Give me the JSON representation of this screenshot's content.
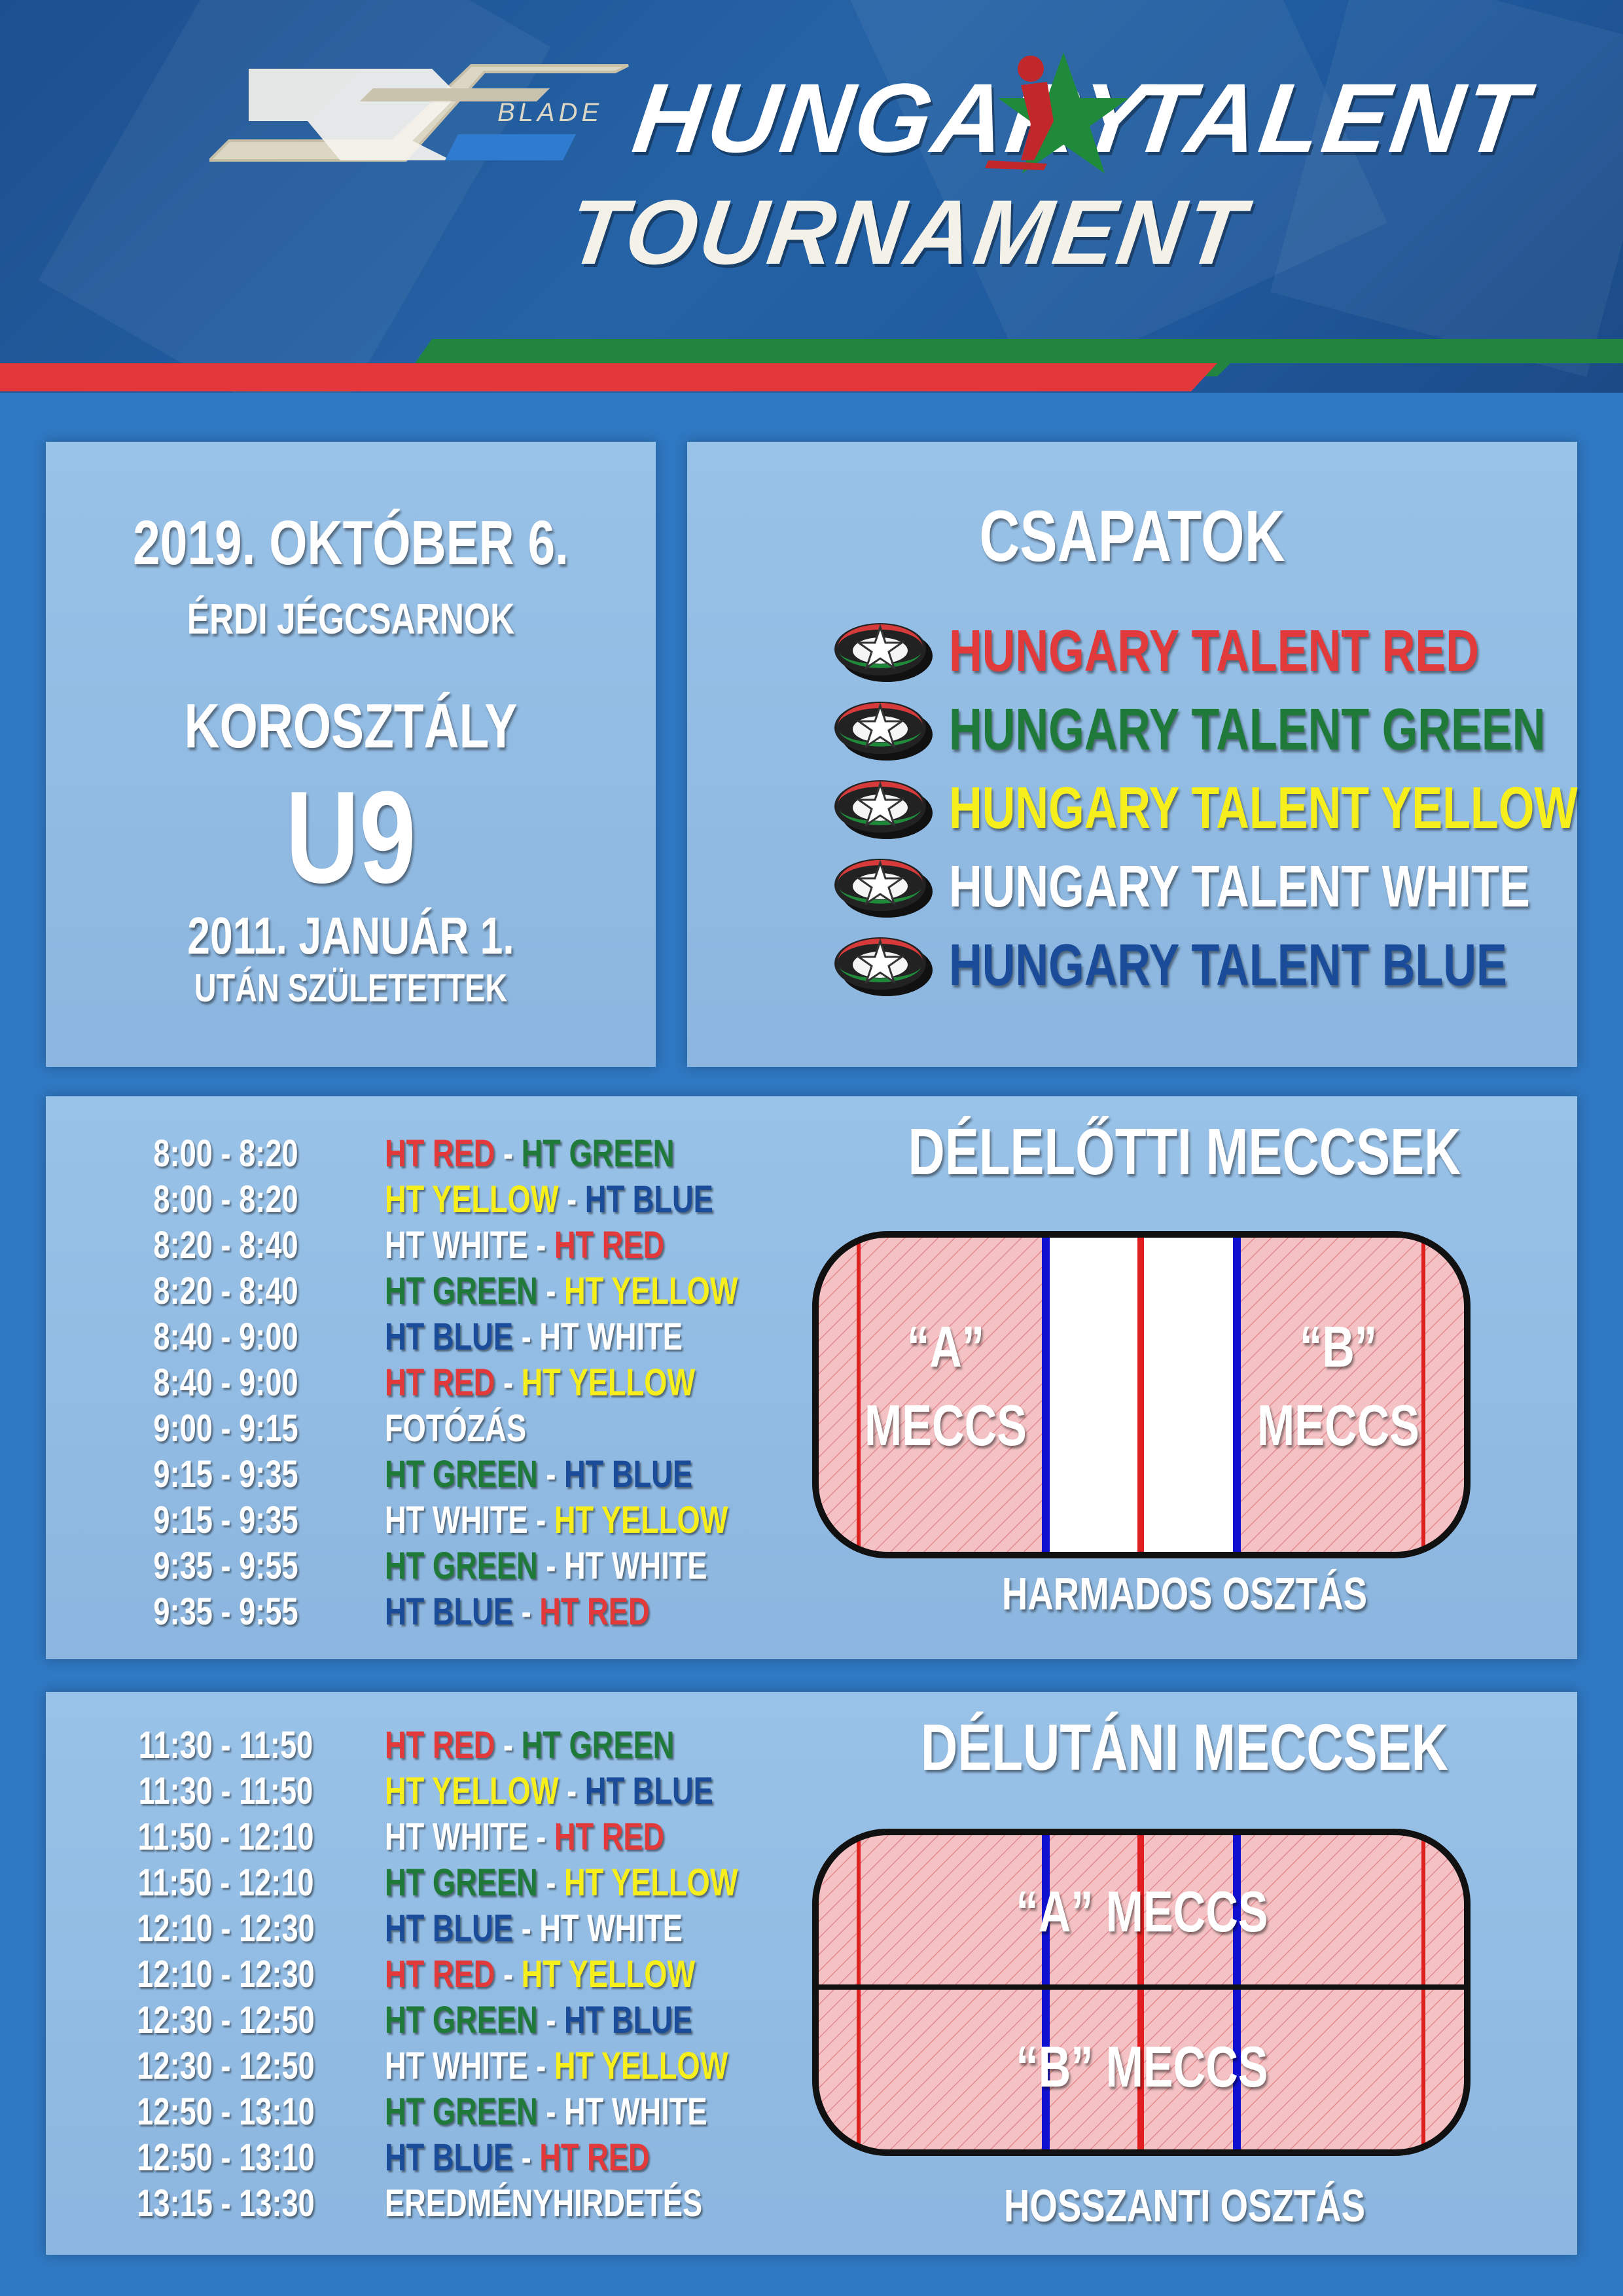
{
  "header": {
    "brand": "BLADE",
    "word1": "HUNGARY",
    "word2": "TALENT",
    "word3": "TOURNAMENT"
  },
  "info": {
    "date": "2019. OKTÓBER 6.",
    "venue": "ÉRDI JÉGCSARNOK",
    "age_label": "KOROSZTÁLY",
    "age_group": "U9",
    "born_date": "2011. JANUÁR 1.",
    "born_note": "UTÁN SZÜLETETTEK"
  },
  "teams": {
    "title": "CSAPATOK",
    "items": [
      {
        "name": "HUNGARY TALENT RED",
        "color": "#e23a3a"
      },
      {
        "name": "HUNGARY TALENT GREEN",
        "color": "#1f7a3a"
      },
      {
        "name": "HUNGARY TALENT YELLOW",
        "color": "#f6ef1c"
      },
      {
        "name": "HUNGARY TALENT WHITE",
        "color": "#ffffff"
      },
      {
        "name": "HUNGARY TALENT BLUE",
        "color": "#1a4c9a"
      }
    ]
  },
  "colors": {
    "red": "#e23a3a",
    "green": "#1f7a3a",
    "yellow": "#f6ef1c",
    "white": "#ffffff",
    "blue": "#1a4c9a"
  },
  "morning": {
    "title": "DÉLELŐTTI MECCSEK",
    "rink_a": [
      "“A”",
      "MECCS"
    ],
    "rink_b": [
      "“B”",
      "MECCS"
    ],
    "caption": "HARMADOS OSZTÁS",
    "rows": [
      {
        "time": "8:00 - 8:20",
        "parts": [
          [
            "HT RED",
            "red"
          ],
          [
            " - ",
            "white"
          ],
          [
            "HT GREEN",
            "green"
          ]
        ]
      },
      {
        "time": "8:00 - 8:20",
        "parts": [
          [
            "HT YELLOW",
            "yellow"
          ],
          [
            " - ",
            "white"
          ],
          [
            "HT BLUE",
            "blue"
          ]
        ]
      },
      {
        "time": "8:20 - 8:40",
        "parts": [
          [
            "HT WHITE",
            "white"
          ],
          [
            " - ",
            "white"
          ],
          [
            "HT RED",
            "red"
          ]
        ]
      },
      {
        "time": "8:20 - 8:40",
        "parts": [
          [
            "HT GREEN",
            "green"
          ],
          [
            " - ",
            "white"
          ],
          [
            "HT YELLOW",
            "yellow"
          ]
        ]
      },
      {
        "time": "8:40 - 9:00",
        "parts": [
          [
            "HT BLUE",
            "blue"
          ],
          [
            " - ",
            "white"
          ],
          [
            "HT WHITE",
            "white"
          ]
        ]
      },
      {
        "time": "8:40 - 9:00",
        "parts": [
          [
            "HT RED",
            "red"
          ],
          [
            " - ",
            "white"
          ],
          [
            "HT YELLOW",
            "yellow"
          ]
        ]
      },
      {
        "time": "9:00 - 9:15",
        "parts": [
          [
            "FOTÓZÁS",
            "white"
          ]
        ]
      },
      {
        "time": "9:15 - 9:35",
        "parts": [
          [
            "HT GREEN",
            "green"
          ],
          [
            " - ",
            "white"
          ],
          [
            "HT BLUE",
            "blue"
          ]
        ]
      },
      {
        "time": "9:15 - 9:35",
        "parts": [
          [
            "HT WHITE",
            "white"
          ],
          [
            " - ",
            "white"
          ],
          [
            "HT YELLOW",
            "yellow"
          ]
        ]
      },
      {
        "time": "9:35 - 9:55",
        "parts": [
          [
            "HT GREEN",
            "green"
          ],
          [
            " - ",
            "white"
          ],
          [
            "HT WHITE",
            "white"
          ]
        ]
      },
      {
        "time": "9:35 - 9:55",
        "parts": [
          [
            "HT BLUE",
            "blue"
          ],
          [
            " - ",
            "white"
          ],
          [
            "HT RED",
            "red"
          ]
        ]
      }
    ]
  },
  "afternoon": {
    "title": "DÉLUTÁNI MECCSEK",
    "rink_a": "“A” MECCS",
    "rink_b": "“B” MECCS",
    "caption": "HOSSZANTI OSZTÁS",
    "rows": [
      {
        "time": "11:30 - 11:50",
        "parts": [
          [
            "HT RED",
            "red"
          ],
          [
            " - ",
            "white"
          ],
          [
            "HT GREEN",
            "green"
          ]
        ]
      },
      {
        "time": "11:30 - 11:50",
        "parts": [
          [
            "HT YELLOW",
            "yellow"
          ],
          [
            " - ",
            "white"
          ],
          [
            "HT BLUE",
            "blue"
          ]
        ]
      },
      {
        "time": "11:50 - 12:10",
        "parts": [
          [
            "HT WHITE",
            "white"
          ],
          [
            " - ",
            "white"
          ],
          [
            "HT RED",
            "red"
          ]
        ]
      },
      {
        "time": "11:50 - 12:10",
        "parts": [
          [
            "HT GREEN",
            "green"
          ],
          [
            " - ",
            "white"
          ],
          [
            "HT YELLOW",
            "yellow"
          ]
        ]
      },
      {
        "time": "12:10 - 12:30",
        "parts": [
          [
            "HT BLUE",
            "blue"
          ],
          [
            " - ",
            "white"
          ],
          [
            "HT WHITE",
            "white"
          ]
        ]
      },
      {
        "time": "12:10 - 12:30",
        "parts": [
          [
            "HT RED",
            "red"
          ],
          [
            " - ",
            "white"
          ],
          [
            "HT YELLOW",
            "yellow"
          ]
        ]
      },
      {
        "time": "12:30 - 12:50",
        "parts": [
          [
            "HT GREEN",
            "green"
          ],
          [
            " - ",
            "white"
          ],
          [
            "HT BLUE",
            "blue"
          ]
        ]
      },
      {
        "time": "12:30 - 12:50",
        "parts": [
          [
            "HT WHITE",
            "white"
          ],
          [
            " - ",
            "white"
          ],
          [
            "HT YELLOW",
            "yellow"
          ]
        ]
      },
      {
        "time": "12:50 - 13:10",
        "parts": [
          [
            "HT GREEN",
            "green"
          ],
          [
            " - ",
            "white"
          ],
          [
            "HT WHITE",
            "white"
          ]
        ]
      },
      {
        "time": "12:50 - 13:10",
        "parts": [
          [
            "HT BLUE",
            "blue"
          ],
          [
            " - ",
            "white"
          ],
          [
            "HT RED",
            "red"
          ]
        ]
      },
      {
        "time": "13:15 - 13:30",
        "parts": [
          [
            "EREDMÉNYHIRDETÉS",
            "white"
          ]
        ]
      }
    ]
  }
}
